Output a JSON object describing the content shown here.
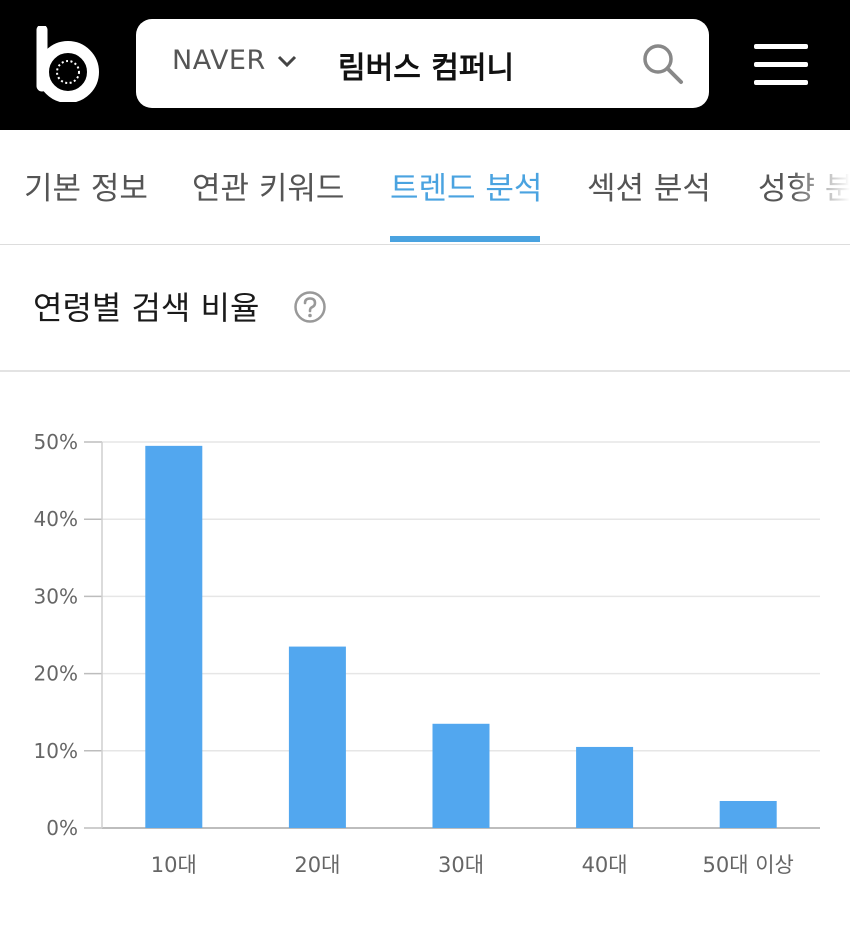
{
  "header": {
    "logo_icon": "b-logo-icon",
    "engine": "NAVER",
    "query": "림버스 컴퍼니",
    "search_icon": "search-icon",
    "menu_icon": "hamburger-menu-icon"
  },
  "tabs": [
    {
      "label": "기본 정보"
    },
    {
      "label": "연관 키워드"
    },
    {
      "label": "트렌드 분석",
      "active": true
    },
    {
      "label": "섹션 분석"
    },
    {
      "label": "성향 분"
    }
  ],
  "section": {
    "title": "연령별 검색 비율"
  },
  "colors": {
    "bar": "#52a7ef",
    "accent": "#4aa3e0"
  },
  "chart_data": {
    "type": "bar",
    "categories": [
      "10대",
      "20대",
      "30대",
      "40대",
      "50대 이상"
    ],
    "values": [
      49.5,
      23.5,
      13.5,
      10.5,
      3.5
    ],
    "yticks": [
      "0%",
      "10%",
      "20%",
      "30%",
      "40%",
      "50%"
    ],
    "ylim": [
      0,
      50
    ],
    "grid": true,
    "legend": "none"
  }
}
